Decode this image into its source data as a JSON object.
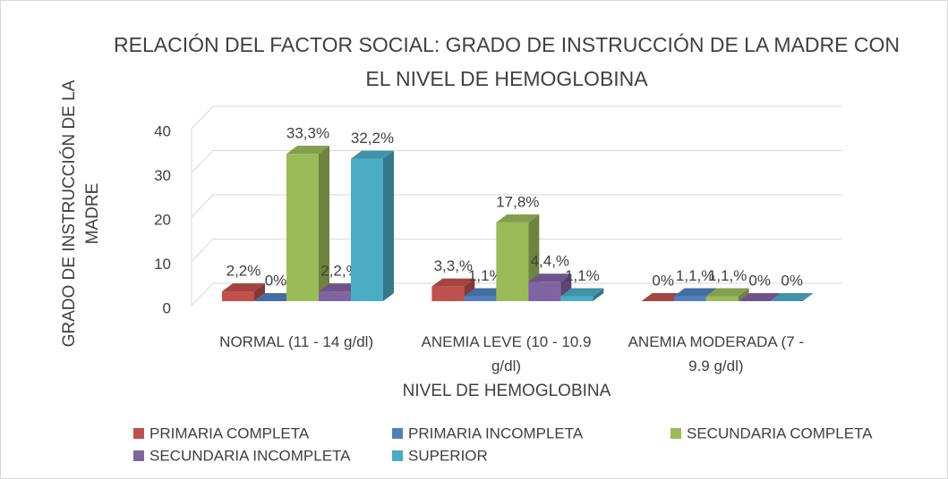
{
  "chart_data": {
    "type": "bar3d",
    "title": "RELACIÓN DEL FACTOR SOCIAL: GRADO DE INSTRUCCIÓN DE LA MADRE CON EL NIVEL DE HEMOGLOBINA",
    "x_label": "NIVEL DE HEMOGLOBINA",
    "y_label": "GRADO DE INSTRUCCIÓN DE LA MADRE",
    "categories": [
      "NORMAL (11 - 14 g/dl)",
      "ANEMIA LEVE (10 - 10.9 g/dl)",
      "ANEMIA MODERADA (7 - 9.9 g/dl)"
    ],
    "series": [
      {
        "name": "PRIMARIA COMPLETA",
        "color": "#c0504d",
        "values": [
          2.2,
          3.3,
          0
        ],
        "value_labels": [
          "2,2%",
          "3,3,%",
          "0%"
        ]
      },
      {
        "name": "PRIMARIA INCOMPLETA",
        "color": "#4f81bd",
        "values": [
          0,
          1.1,
          1.1
        ],
        "value_labels": [
          "0%",
          "1,1%",
          "1,1,%"
        ]
      },
      {
        "name": "SECUNDARIA COMPLETA",
        "color": "#9bbb59",
        "values": [
          33.3,
          17.8,
          1.1
        ],
        "value_labels": [
          "33,3%",
          "17,8%",
          "1,1,%"
        ]
      },
      {
        "name": "SECUNDARIA INCOMPLETA",
        "color": "#8064a2",
        "values": [
          2.2,
          4.4,
          0
        ],
        "value_labels": [
          "2,2,%",
          "4,4,%",
          "0%"
        ]
      },
      {
        "name": "SUPERIOR",
        "color": "#4bacc6",
        "values": [
          32.2,
          1.1,
          0
        ],
        "value_labels": [
          "32,2%",
          "1,1%",
          "0%"
        ]
      }
    ],
    "ylim": [
      0,
      40
    ],
    "yticks": [
      0,
      10,
      20,
      30,
      40
    ],
    "grid": true
  }
}
